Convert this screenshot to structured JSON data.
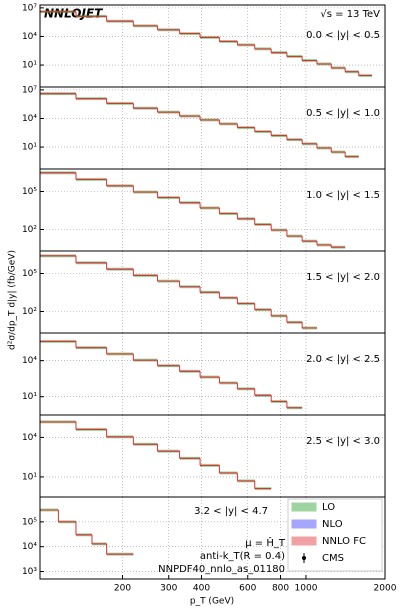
{
  "title": "NNLOJET",
  "energy": "√s = 13 TeV",
  "ylabel": "d²σ/dp_T d|y| (fb/GeV)",
  "xaxis": {
    "label": "p_T (GeV)",
    "log": true,
    "xlim": [
      97,
      2000
    ],
    "xticks": [
      200,
      300,
      400,
      600,
      800,
      1000,
      2000
    ],
    "grid": true
  },
  "legend": [
    {
      "name": "LO",
      "color": "#2ca02c"
    },
    {
      "name": "NLO",
      "color": "#3b3bff"
    },
    {
      "name": "NNLO FC",
      "color": "#e03030"
    },
    {
      "name": "CMS",
      "color": "#000000"
    }
  ],
  "notes": [
    "μ = Ĥ_T",
    "anti-k_T(R = 0.4)",
    "NNPDF40_nnlo_as_01180"
  ],
  "chart_data": [
    {
      "type": "histogram",
      "label": "0.0 < |y| < 0.5",
      "log": true,
      "ylim": [
        0.05,
        20000000
      ],
      "yticks": [
        {
          "value": 10,
          "label": "10¹"
        },
        {
          "value": 10000,
          "label": "10⁴"
        },
        {
          "value": 10000000,
          "label": "10⁷"
        }
      ],
      "bins": [
        97,
        133,
        174,
        220,
        272,
        330,
        395,
        468,
        548,
        638,
        737,
        846,
        967,
        1101,
        1248,
        1410,
        1588,
        1784
      ],
      "values": [
        4000000,
        1300000,
        400000,
        130000,
        50000,
        20000,
        8000,
        3000,
        1300,
        500,
        200,
        80,
        30,
        13,
        5,
        2,
        0.8
      ]
    },
    {
      "type": "histogram",
      "label": "0.5 < |y| < 1.0",
      "log": true,
      "ylim": [
        0.05,
        20000000
      ],
      "yticks": [
        {
          "value": 10,
          "label": "10¹"
        },
        {
          "value": 10000,
          "label": "10⁴"
        },
        {
          "value": 10000000,
          "label": "10⁷"
        }
      ],
      "bins": [
        97,
        133,
        174,
        220,
        272,
        330,
        395,
        468,
        548,
        638,
        737,
        846,
        967,
        1101,
        1248,
        1410,
        1588
      ],
      "values": [
        4000000,
        1200000,
        380000,
        120000,
        46000,
        18000,
        7000,
        2700,
        1100,
        420,
        160,
        60,
        22,
        8,
        3,
        1
      ]
    },
    {
      "type": "histogram",
      "label": "1.0 < |y| < 1.5",
      "log": true,
      "ylim": [
        2,
        6000000
      ],
      "yticks": [
        {
          "value": 100,
          "label": "10²"
        },
        {
          "value": 100000,
          "label": "10⁵"
        }
      ],
      "bins": [
        97,
        133,
        174,
        220,
        272,
        330,
        395,
        468,
        548,
        638,
        737,
        846,
        967,
        1101,
        1248,
        1410
      ],
      "values": [
        3000000,
        900000,
        280000,
        90000,
        33000,
        13000,
        5000,
        1800,
        700,
        250,
        90,
        30,
        12,
        6,
        4
      ]
    },
    {
      "type": "histogram",
      "label": "1.5 < |y| < 2.0",
      "log": true,
      "ylim": [
        2,
        6000000
      ],
      "yticks": [
        {
          "value": 100,
          "label": "10²"
        },
        {
          "value": 100000,
          "label": "10⁵"
        }
      ],
      "bins": [
        97,
        133,
        174,
        220,
        272,
        330,
        395,
        468,
        548,
        638,
        737,
        846,
        967,
        1101
      ],
      "values": [
        2500000,
        700000,
        220000,
        70000,
        25000,
        9000,
        3300,
        1200,
        420,
        140,
        45,
        14,
        5
      ]
    },
    {
      "type": "histogram",
      "label": "2.0 < |y| < 2.5",
      "log": true,
      "ylim": [
        0.3,
        2000000
      ],
      "yticks": [
        {
          "value": 10,
          "label": "10¹"
        },
        {
          "value": 10000,
          "label": "10⁴"
        }
      ],
      "bins": [
        97,
        133,
        174,
        220,
        272,
        330,
        395,
        468,
        548,
        638,
        737,
        846,
        967
      ],
      "values": [
        400000,
        120000,
        36000,
        11000,
        3800,
        1300,
        430,
        140,
        45,
        13,
        4,
        1.2
      ]
    },
    {
      "type": "histogram",
      "label": "2.5 < |y| < 3.0",
      "log": true,
      "ylim": [
        0.3,
        500000
      ],
      "yticks": [
        {
          "value": 10,
          "label": "10¹"
        },
        {
          "value": 10000,
          "label": "10⁴"
        }
      ],
      "bins": [
        97,
        133,
        174,
        220,
        272,
        330,
        395,
        468,
        548,
        638,
        737
      ],
      "values": [
        150000,
        40000,
        11000,
        3000,
        900,
        260,
        75,
        20,
        5,
        1.3
      ]
    },
    {
      "type": "histogram",
      "label": "3.2 < |y| < 4.7",
      "log": true,
      "ylim": [
        500,
        1000000
      ],
      "yticks": [
        {
          "value": 1000,
          "label": "10³"
        },
        {
          "value": 10000,
          "label": "10⁴"
        },
        {
          "value": 100000,
          "label": "10⁵"
        }
      ],
      "bins": [
        97,
        114,
        133,
        153,
        174,
        220
      ],
      "values": [
        300000,
        100000,
        30000,
        13000,
        5000
      ]
    }
  ]
}
